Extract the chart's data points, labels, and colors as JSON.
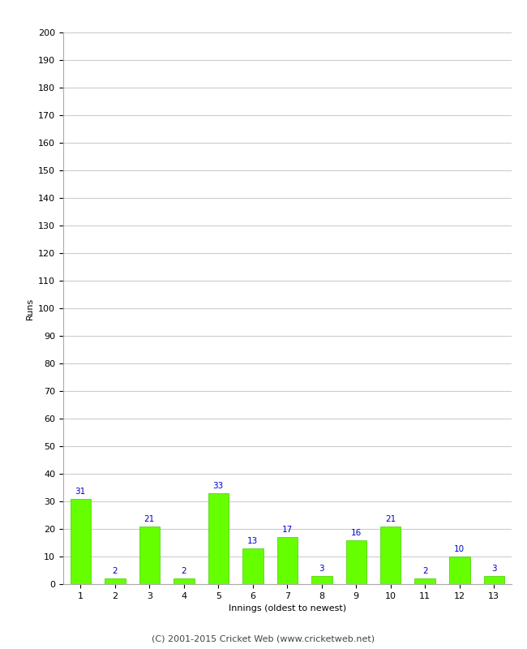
{
  "xlabel": "Innings (oldest to newest)",
  "ylabel": "Runs",
  "categories": [
    1,
    2,
    3,
    4,
    5,
    6,
    7,
    8,
    9,
    10,
    11,
    12,
    13
  ],
  "values": [
    31,
    2,
    21,
    2,
    33,
    13,
    17,
    3,
    16,
    21,
    2,
    10,
    3
  ],
  "bar_color": "#66ff00",
  "bar_edgecolor": "#44cc00",
  "value_color": "#0000cc",
  "value_fontsize": 7.5,
  "ylim": [
    0,
    200
  ],
  "yticks": [
    0,
    10,
    20,
    30,
    40,
    50,
    60,
    70,
    80,
    90,
    100,
    110,
    120,
    130,
    140,
    150,
    160,
    170,
    180,
    190,
    200
  ],
  "grid_color": "#cccccc",
  "background_color": "#ffffff",
  "footer_text": "(C) 2001-2015 Cricket Web (www.cricketweb.net)",
  "footer_fontsize": 8,
  "footer_color": "#444444",
  "axis_label_fontsize": 8,
  "tick_fontsize": 8
}
